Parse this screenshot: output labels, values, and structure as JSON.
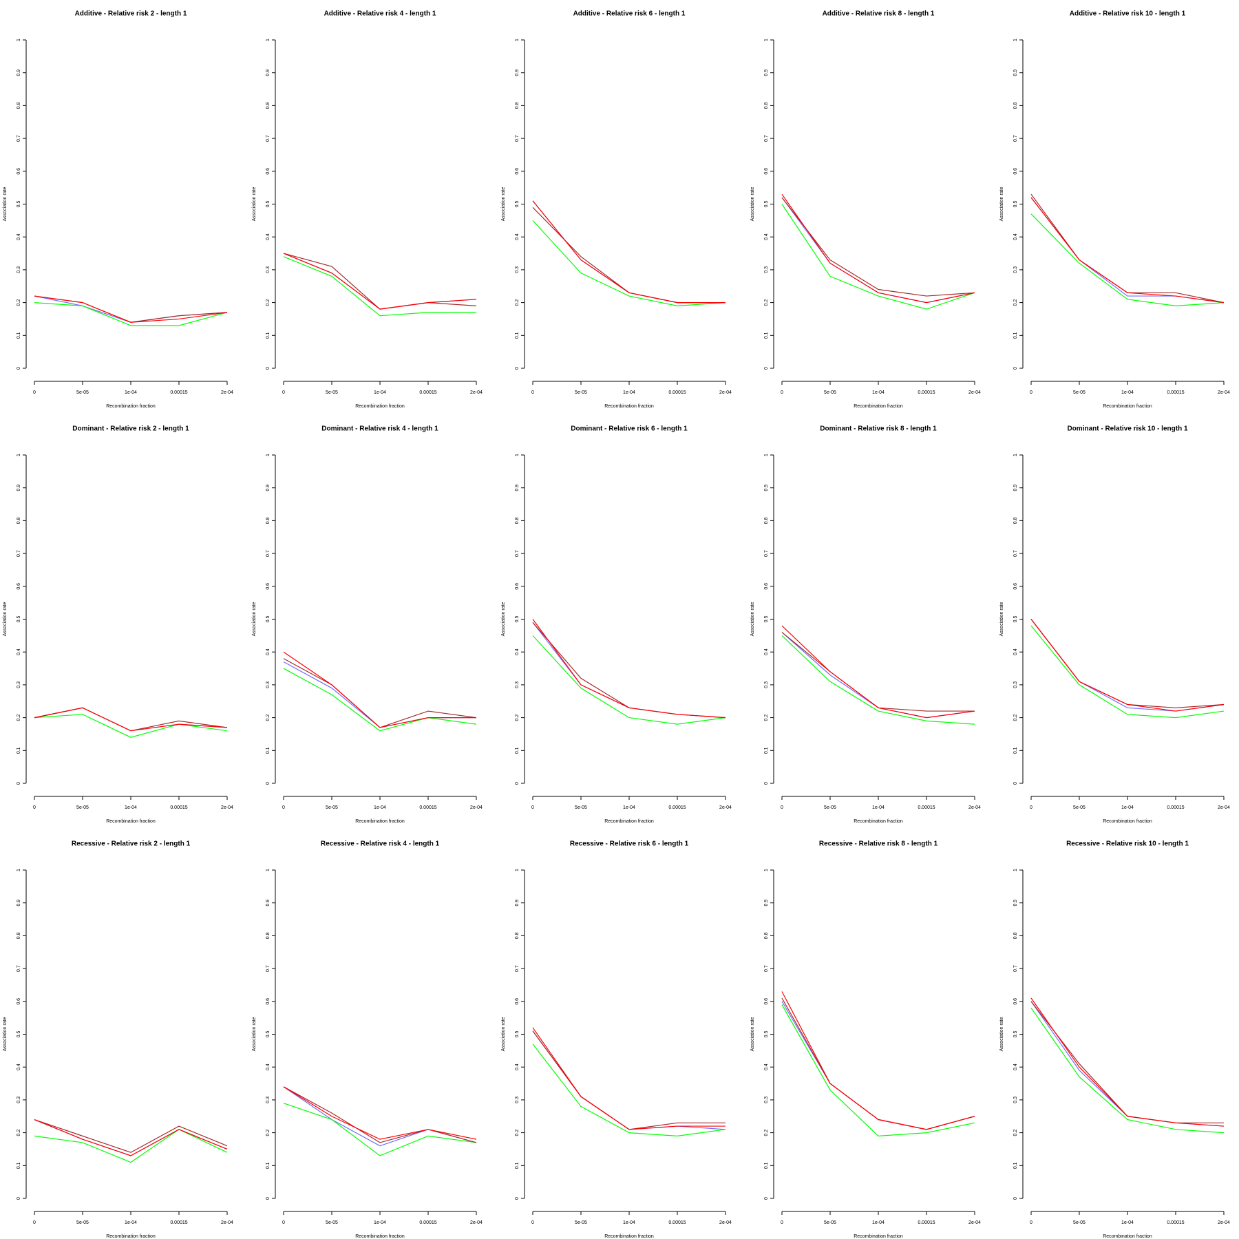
{
  "chart_data": [
    {
      "type": "line",
      "title": "Additive  - Relative risk 2 - length 1",
      "xlabel": "Recombination fraction",
      "ylabel": "Association rate",
      "categories": [
        "0",
        "5e-05",
        "1e-04",
        "0.00015",
        "2e-04"
      ],
      "ylim": [
        0,
        1
      ],
      "yticks": [
        0,
        0.1,
        0.2,
        0.3,
        0.4,
        0.5,
        0.6,
        0.7,
        0.8,
        0.9,
        1
      ],
      "series": [
        {
          "color": "#6f6fff",
          "values": [
            0.22,
            0.19,
            0.14,
            0.16,
            0.17
          ]
        },
        {
          "color": "#00ff00",
          "values": [
            0.2,
            0.19,
            0.13,
            0.13,
            0.17
          ]
        },
        {
          "color": "#a52a2a",
          "values": [
            0.22,
            0.2,
            0.14,
            0.16,
            0.17
          ]
        },
        {
          "color": "#ff0000",
          "values": [
            0.22,
            0.2,
            0.14,
            0.15,
            0.17
          ]
        }
      ]
    },
    {
      "type": "line",
      "title": "Additive  - Relative risk 4 - length 1",
      "xlabel": "Recombination fraction",
      "ylabel": "Association rate",
      "categories": [
        "0",
        "5e-05",
        "1e-04",
        "0.00015",
        "2e-04"
      ],
      "ylim": [
        0,
        1
      ],
      "yticks": [
        0,
        0.1,
        0.2,
        0.3,
        0.4,
        0.5,
        0.6,
        0.7,
        0.8,
        0.9,
        1
      ],
      "series": [
        {
          "color": "#6f6fff",
          "values": [
            0.35,
            0.29,
            0.18,
            0.2,
            0.21
          ]
        },
        {
          "color": "#00ff00",
          "values": [
            0.34,
            0.28,
            0.16,
            0.17,
            0.17
          ]
        },
        {
          "color": "#a52a2a",
          "values": [
            0.35,
            0.31,
            0.18,
            0.2,
            0.19
          ]
        },
        {
          "color": "#ff0000",
          "values": [
            0.35,
            0.29,
            0.18,
            0.2,
            0.21
          ]
        }
      ]
    },
    {
      "type": "line",
      "title": "Additive  - Relative risk 6 - length 1",
      "xlabel": "Recombination fraction",
      "ylabel": "Association rate",
      "categories": [
        "0",
        "5e-05",
        "1e-04",
        "0.00015",
        "2e-04"
      ],
      "ylim": [
        0,
        1
      ],
      "yticks": [
        0,
        0.1,
        0.2,
        0.3,
        0.4,
        0.5,
        0.6,
        0.7,
        0.8,
        0.9,
        1
      ],
      "series": [
        {
          "color": "#6f6fff",
          "values": [
            0.51,
            0.33,
            0.23,
            0.2,
            0.2
          ]
        },
        {
          "color": "#00ff00",
          "values": [
            0.45,
            0.29,
            0.22,
            0.19,
            0.2
          ]
        },
        {
          "color": "#a52a2a",
          "values": [
            0.49,
            0.34,
            0.23,
            0.2,
            0.2
          ]
        },
        {
          "color": "#ff0000",
          "values": [
            0.51,
            0.33,
            0.23,
            0.2,
            0.2
          ]
        }
      ]
    },
    {
      "type": "line",
      "title": "Additive  - Relative risk 8 - length 1",
      "xlabel": "Recombination fraction",
      "ylabel": "Association rate",
      "categories": [
        "0",
        "5e-05",
        "1e-04",
        "0.00015",
        "2e-04"
      ],
      "ylim": [
        0,
        1
      ],
      "yticks": [
        0,
        0.1,
        0.2,
        0.3,
        0.4,
        0.5,
        0.6,
        0.7,
        0.8,
        0.9,
        1
      ],
      "series": [
        {
          "color": "#6f6fff",
          "values": [
            0.52,
            0.32,
            0.23,
            0.2,
            0.23
          ]
        },
        {
          "color": "#00ff00",
          "values": [
            0.5,
            0.28,
            0.22,
            0.18,
            0.23
          ]
        },
        {
          "color": "#a52a2a",
          "values": [
            0.52,
            0.33,
            0.24,
            0.22,
            0.23
          ]
        },
        {
          "color": "#ff0000",
          "values": [
            0.53,
            0.32,
            0.23,
            0.2,
            0.23
          ]
        }
      ]
    },
    {
      "type": "line",
      "title": "Additive  - Relative risk 10 - length 1",
      "xlabel": "Recombination fraction",
      "ylabel": "Association rate",
      "categories": [
        "0",
        "5e-05",
        "1e-04",
        "0.00015",
        "2e-04"
      ],
      "ylim": [
        0,
        1
      ],
      "yticks": [
        0,
        0.1,
        0.2,
        0.3,
        0.4,
        0.5,
        0.6,
        0.7,
        0.8,
        0.9,
        1
      ],
      "series": [
        {
          "color": "#6f6fff",
          "values": [
            0.52,
            0.33,
            0.22,
            0.22,
            0.2
          ]
        },
        {
          "color": "#00ff00",
          "values": [
            0.47,
            0.32,
            0.21,
            0.19,
            0.2
          ]
        },
        {
          "color": "#a52a2a",
          "values": [
            0.53,
            0.33,
            0.23,
            0.23,
            0.2
          ]
        },
        {
          "color": "#ff0000",
          "values": [
            0.52,
            0.33,
            0.23,
            0.22,
            0.2
          ]
        }
      ]
    },
    {
      "type": "line",
      "title": "Dominant  - Relative risk 2 - length 1",
      "xlabel": "Recombination fraction",
      "ylabel": "Association rate",
      "categories": [
        "0",
        "5e-05",
        "1e-04",
        "0.00015",
        "2e-04"
      ],
      "ylim": [
        0,
        1
      ],
      "yticks": [
        0,
        0.1,
        0.2,
        0.3,
        0.4,
        0.5,
        0.6,
        0.7,
        0.8,
        0.9,
        1
      ],
      "series": [
        {
          "color": "#6f6fff",
          "values": [
            0.2,
            0.23,
            0.16,
            0.18,
            0.17
          ]
        },
        {
          "color": "#00ff00",
          "values": [
            0.2,
            0.21,
            0.14,
            0.18,
            0.16
          ]
        },
        {
          "color": "#a52a2a",
          "values": [
            0.2,
            0.23,
            0.16,
            0.19,
            0.17
          ]
        },
        {
          "color": "#ff0000",
          "values": [
            0.2,
            0.23,
            0.16,
            0.18,
            0.17
          ]
        }
      ]
    },
    {
      "type": "line",
      "title": "Dominant  - Relative risk 4 - length 1",
      "xlabel": "Recombination fraction",
      "ylabel": "Association rate",
      "categories": [
        "0",
        "5e-05",
        "1e-04",
        "0.00015",
        "2e-04"
      ],
      "ylim": [
        0,
        1
      ],
      "yticks": [
        0,
        0.1,
        0.2,
        0.3,
        0.4,
        0.5,
        0.6,
        0.7,
        0.8,
        0.9,
        1
      ],
      "series": [
        {
          "color": "#6f6fff",
          "values": [
            0.37,
            0.29,
            0.17,
            0.2,
            0.2
          ]
        },
        {
          "color": "#00ff00",
          "values": [
            0.35,
            0.27,
            0.16,
            0.2,
            0.18
          ]
        },
        {
          "color": "#a52a2a",
          "values": [
            0.38,
            0.3,
            0.17,
            0.22,
            0.2
          ]
        },
        {
          "color": "#ff0000",
          "values": [
            0.4,
            0.3,
            0.17,
            0.2,
            0.2
          ]
        }
      ]
    },
    {
      "type": "line",
      "title": "Dominant  - Relative risk 6 - length 1",
      "xlabel": "Recombination fraction",
      "ylabel": "Association rate",
      "categories": [
        "0",
        "5e-05",
        "1e-04",
        "0.00015",
        "2e-04"
      ],
      "ylim": [
        0,
        1
      ],
      "yticks": [
        0,
        0.1,
        0.2,
        0.3,
        0.4,
        0.5,
        0.6,
        0.7,
        0.8,
        0.9,
        1
      ],
      "series": [
        {
          "color": "#6f6fff",
          "values": [
            0.49,
            0.3,
            0.23,
            0.21,
            0.2
          ]
        },
        {
          "color": "#00ff00",
          "values": [
            0.45,
            0.29,
            0.2,
            0.18,
            0.2
          ]
        },
        {
          "color": "#a52a2a",
          "values": [
            0.49,
            0.32,
            0.23,
            0.21,
            0.2
          ]
        },
        {
          "color": "#ff0000",
          "values": [
            0.5,
            0.3,
            0.23,
            0.21,
            0.2
          ]
        }
      ]
    },
    {
      "type": "line",
      "title": "Dominant  - Relative risk 8 - length 1",
      "xlabel": "Recombination fraction",
      "ylabel": "Association rate",
      "categories": [
        "0",
        "5e-05",
        "1e-04",
        "0.00015",
        "2e-04"
      ],
      "ylim": [
        0,
        1
      ],
      "yticks": [
        0,
        0.1,
        0.2,
        0.3,
        0.4,
        0.5,
        0.6,
        0.7,
        0.8,
        0.9,
        1
      ],
      "series": [
        {
          "color": "#6f6fff",
          "values": [
            0.46,
            0.33,
            0.23,
            0.2,
            0.22
          ]
        },
        {
          "color": "#00ff00",
          "values": [
            0.45,
            0.31,
            0.22,
            0.19,
            0.18
          ]
        },
        {
          "color": "#a52a2a",
          "values": [
            0.46,
            0.34,
            0.23,
            0.22,
            0.22
          ]
        },
        {
          "color": "#ff0000",
          "values": [
            0.48,
            0.34,
            0.23,
            0.2,
            0.22
          ]
        }
      ]
    },
    {
      "type": "line",
      "title": "Dominant  - Relative risk 10 - length 1",
      "xlabel": "Recombination fraction",
      "ylabel": "Association rate",
      "categories": [
        "0",
        "5e-05",
        "1e-04",
        "0.00015",
        "2e-04"
      ],
      "ylim": [
        0,
        1
      ],
      "yticks": [
        0,
        0.1,
        0.2,
        0.3,
        0.4,
        0.5,
        0.6,
        0.7,
        0.8,
        0.9,
        1
      ],
      "series": [
        {
          "color": "#6f6fff",
          "values": [
            0.5,
            0.31,
            0.23,
            0.22,
            0.24
          ]
        },
        {
          "color": "#00ff00",
          "values": [
            0.48,
            0.3,
            0.21,
            0.2,
            0.22
          ]
        },
        {
          "color": "#a52a2a",
          "values": [
            0.5,
            0.31,
            0.24,
            0.23,
            0.24
          ]
        },
        {
          "color": "#ff0000",
          "values": [
            0.5,
            0.31,
            0.24,
            0.22,
            0.24
          ]
        }
      ]
    },
    {
      "type": "line",
      "title": "Recessive  - Relative risk 2 - length 1",
      "xlabel": "Recombination fraction",
      "ylabel": "Association rate",
      "categories": [
        "0",
        "5e-05",
        "1e-04",
        "0.00015",
        "2e-04"
      ],
      "ylim": [
        0,
        1
      ],
      "yticks": [
        0,
        0.1,
        0.2,
        0.3,
        0.4,
        0.5,
        0.6,
        0.7,
        0.8,
        0.9,
        1
      ],
      "series": [
        {
          "color": "#6f6fff",
          "values": [
            0.24,
            0.18,
            0.13,
            0.21,
            0.15
          ]
        },
        {
          "color": "#00ff00",
          "values": [
            0.19,
            0.17,
            0.11,
            0.21,
            0.14
          ]
        },
        {
          "color": "#a52a2a",
          "values": [
            0.24,
            0.19,
            0.14,
            0.22,
            0.16
          ]
        },
        {
          "color": "#ff0000",
          "values": [
            0.24,
            0.18,
            0.13,
            0.21,
            0.15
          ]
        }
      ]
    },
    {
      "type": "line",
      "title": "Recessive  - Relative risk 4 - length 1",
      "xlabel": "Recombination fraction",
      "ylabel": "Association rate",
      "categories": [
        "0",
        "5e-05",
        "1e-04",
        "0.00015",
        "2e-04"
      ],
      "ylim": [
        0,
        1
      ],
      "yticks": [
        0,
        0.1,
        0.2,
        0.3,
        0.4,
        0.5,
        0.6,
        0.7,
        0.8,
        0.9,
        1
      ],
      "series": [
        {
          "color": "#6f6fff",
          "values": [
            0.34,
            0.24,
            0.16,
            0.21,
            0.17
          ]
        },
        {
          "color": "#00ff00",
          "values": [
            0.29,
            0.24,
            0.13,
            0.19,
            0.17
          ]
        },
        {
          "color": "#a52a2a",
          "values": [
            0.34,
            0.26,
            0.17,
            0.21,
            0.17
          ]
        },
        {
          "color": "#ff0000",
          "values": [
            0.34,
            0.25,
            0.18,
            0.21,
            0.18
          ]
        }
      ]
    },
    {
      "type": "line",
      "title": "Recessive  - Relative risk 6 - length 1",
      "xlabel": "Recombination fraction",
      "ylabel": "Association rate",
      "categories": [
        "0",
        "5e-05",
        "1e-04",
        "0.00015",
        "2e-04"
      ],
      "ylim": [
        0,
        1
      ],
      "yticks": [
        0,
        0.1,
        0.2,
        0.3,
        0.4,
        0.5,
        0.6,
        0.7,
        0.8,
        0.9,
        1
      ],
      "series": [
        {
          "color": "#6f6fff",
          "values": [
            0.51,
            0.31,
            0.21,
            0.22,
            0.21
          ]
        },
        {
          "color": "#00ff00",
          "values": [
            0.47,
            0.28,
            0.2,
            0.19,
            0.21
          ]
        },
        {
          "color": "#a52a2a",
          "values": [
            0.51,
            0.31,
            0.21,
            0.23,
            0.23
          ]
        },
        {
          "color": "#ff0000",
          "values": [
            0.52,
            0.31,
            0.21,
            0.22,
            0.22
          ]
        }
      ]
    },
    {
      "type": "line",
      "title": "Recessive  - Relative risk 8 - length 1",
      "xlabel": "Recombination fraction",
      "ylabel": "Association rate",
      "categories": [
        "0",
        "5e-05",
        "1e-04",
        "0.00015",
        "2e-04"
      ],
      "ylim": [
        0,
        1
      ],
      "yticks": [
        0,
        0.1,
        0.2,
        0.3,
        0.4,
        0.5,
        0.6,
        0.7,
        0.8,
        0.9,
        1
      ],
      "series": [
        {
          "color": "#6f6fff",
          "values": [
            0.6,
            0.35,
            0.24,
            0.21,
            0.25
          ]
        },
        {
          "color": "#00ff00",
          "values": [
            0.59,
            0.33,
            0.19,
            0.2,
            0.23
          ]
        },
        {
          "color": "#a52a2a",
          "values": [
            0.61,
            0.35,
            0.24,
            0.21,
            0.25
          ]
        },
        {
          "color": "#ff0000",
          "values": [
            0.63,
            0.35,
            0.24,
            0.21,
            0.25
          ]
        }
      ]
    },
    {
      "type": "line",
      "title": "Recessive  - Relative risk 10 - length 1",
      "xlabel": "Recombination fraction",
      "ylabel": "Association rate",
      "categories": [
        "0",
        "5e-05",
        "1e-04",
        "0.00015",
        "2e-04"
      ],
      "ylim": [
        0,
        1
      ],
      "yticks": [
        0,
        0.1,
        0.2,
        0.3,
        0.4,
        0.5,
        0.6,
        0.7,
        0.8,
        0.9,
        1
      ],
      "series": [
        {
          "color": "#6f6fff",
          "values": [
            0.6,
            0.39,
            0.25,
            0.23,
            0.22
          ]
        },
        {
          "color": "#00ff00",
          "values": [
            0.58,
            0.37,
            0.24,
            0.21,
            0.2
          ]
        },
        {
          "color": "#a52a2a",
          "values": [
            0.6,
            0.41,
            0.25,
            0.23,
            0.23
          ]
        },
        {
          "color": "#ff0000",
          "values": [
            0.61,
            0.4,
            0.25,
            0.23,
            0.22
          ]
        }
      ]
    }
  ]
}
